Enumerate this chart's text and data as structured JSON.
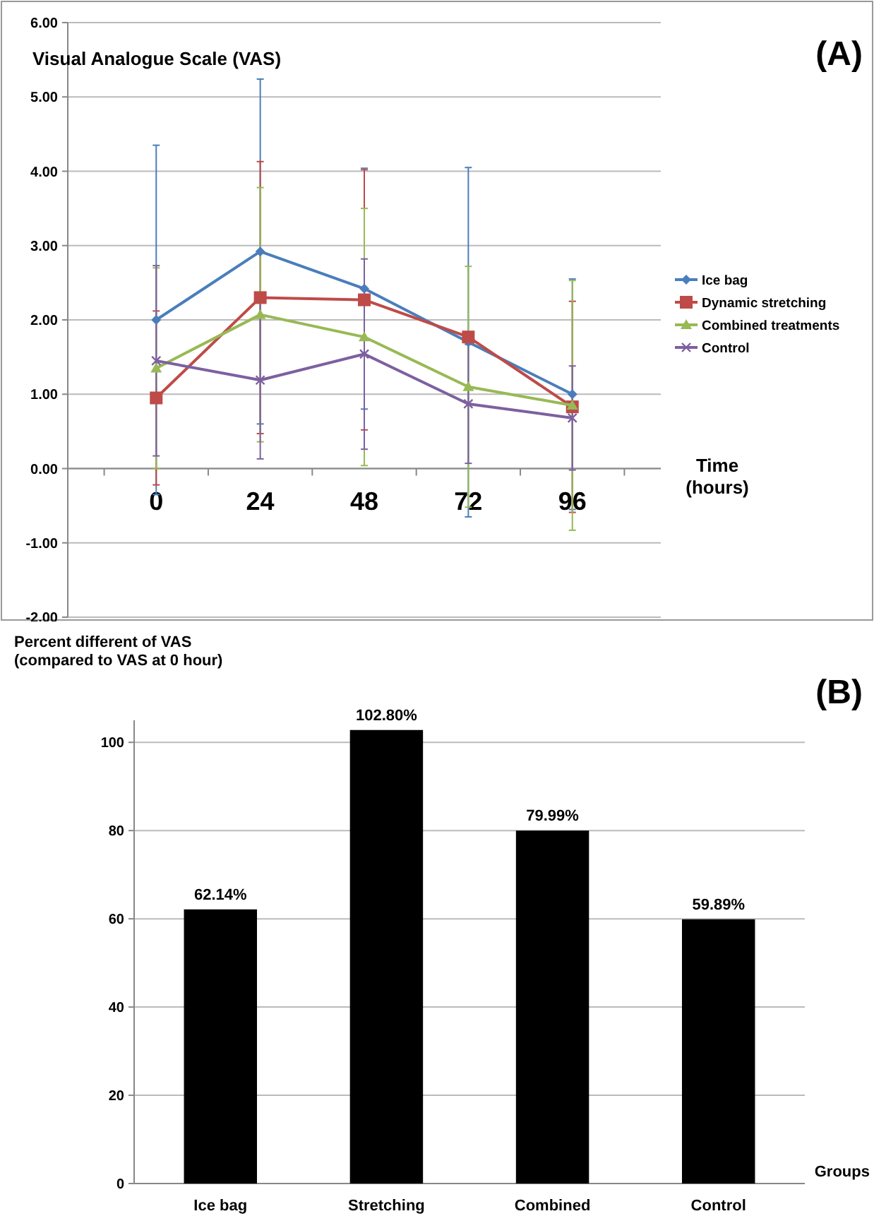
{
  "chart_data": [
    {
      "type": "line",
      "annotations": [
        "(A)"
      ],
      "ylabel": "Visual Analogue Scale (VAS)",
      "xlabel": "Time\n(hours)",
      "categories": [
        "0",
        "24",
        "48",
        "72",
        "96"
      ],
      "series": [
        {
          "name": "Ice bag",
          "color": "#4a7ebb",
          "marker": "diamond",
          "values": [
            2.0,
            2.92,
            2.42,
            1.7,
            1.0
          ],
          "errors": [
            2.35,
            2.32,
            1.62,
            2.35,
            1.55
          ]
        },
        {
          "name": "Dynamic stretching",
          "color": "#be4b48",
          "marker": "square",
          "values": [
            0.95,
            2.3,
            2.27,
            1.77,
            0.83
          ],
          "errors": [
            1.17,
            1.83,
            1.75,
            null,
            1.42
          ]
        },
        {
          "name": "Combined treatments",
          "color": "#98b954",
          "marker": "triangle",
          "values": [
            1.35,
            2.07,
            1.77,
            1.1,
            0.85
          ],
          "errors": [
            1.35,
            1.71,
            1.73,
            1.62,
            1.68
          ]
        },
        {
          "name": "Control",
          "color": "#7d60a0",
          "marker": "cross",
          "values": [
            1.45,
            1.19,
            1.54,
            0.87,
            0.68
          ],
          "errors": [
            1.28,
            1.06,
            1.28,
            0.8,
            0.7
          ]
        }
      ],
      "ylim": [
        -2,
        6
      ],
      "yticks": [
        {
          "value": -2,
          "label": "-2.00"
        },
        {
          "value": -1,
          "label": "-1.00"
        },
        {
          "value": 0,
          "label": "0.00"
        },
        {
          "value": 1,
          "label": "1.00"
        },
        {
          "value": 2,
          "label": "2.00"
        },
        {
          "value": 3,
          "label": "3.00"
        },
        {
          "value": 4,
          "label": "4.00"
        },
        {
          "value": 5,
          "label": "5.00"
        },
        {
          "value": 6,
          "label": "6.00"
        }
      ],
      "grid": "y",
      "legend": "right"
    },
    {
      "type": "bar",
      "annotations": [
        "(B)"
      ],
      "ylabel": "Percent different of VAS\n(compared to VAS at 0 hour)",
      "xlabel": "Groups",
      "categories": [
        "Ice bag",
        "Stretching",
        "Combined",
        "Control"
      ],
      "values": [
        62.14,
        102.8,
        79.99,
        59.89
      ],
      "color": "#000000",
      "value_labels": [
        "62.14%",
        "102.80%",
        "79.99%",
        "59.89%"
      ],
      "ylim": [
        0,
        105
      ],
      "yticks": [
        0,
        20,
        40,
        60,
        80,
        100
      ],
      "grid": "y"
    }
  ]
}
